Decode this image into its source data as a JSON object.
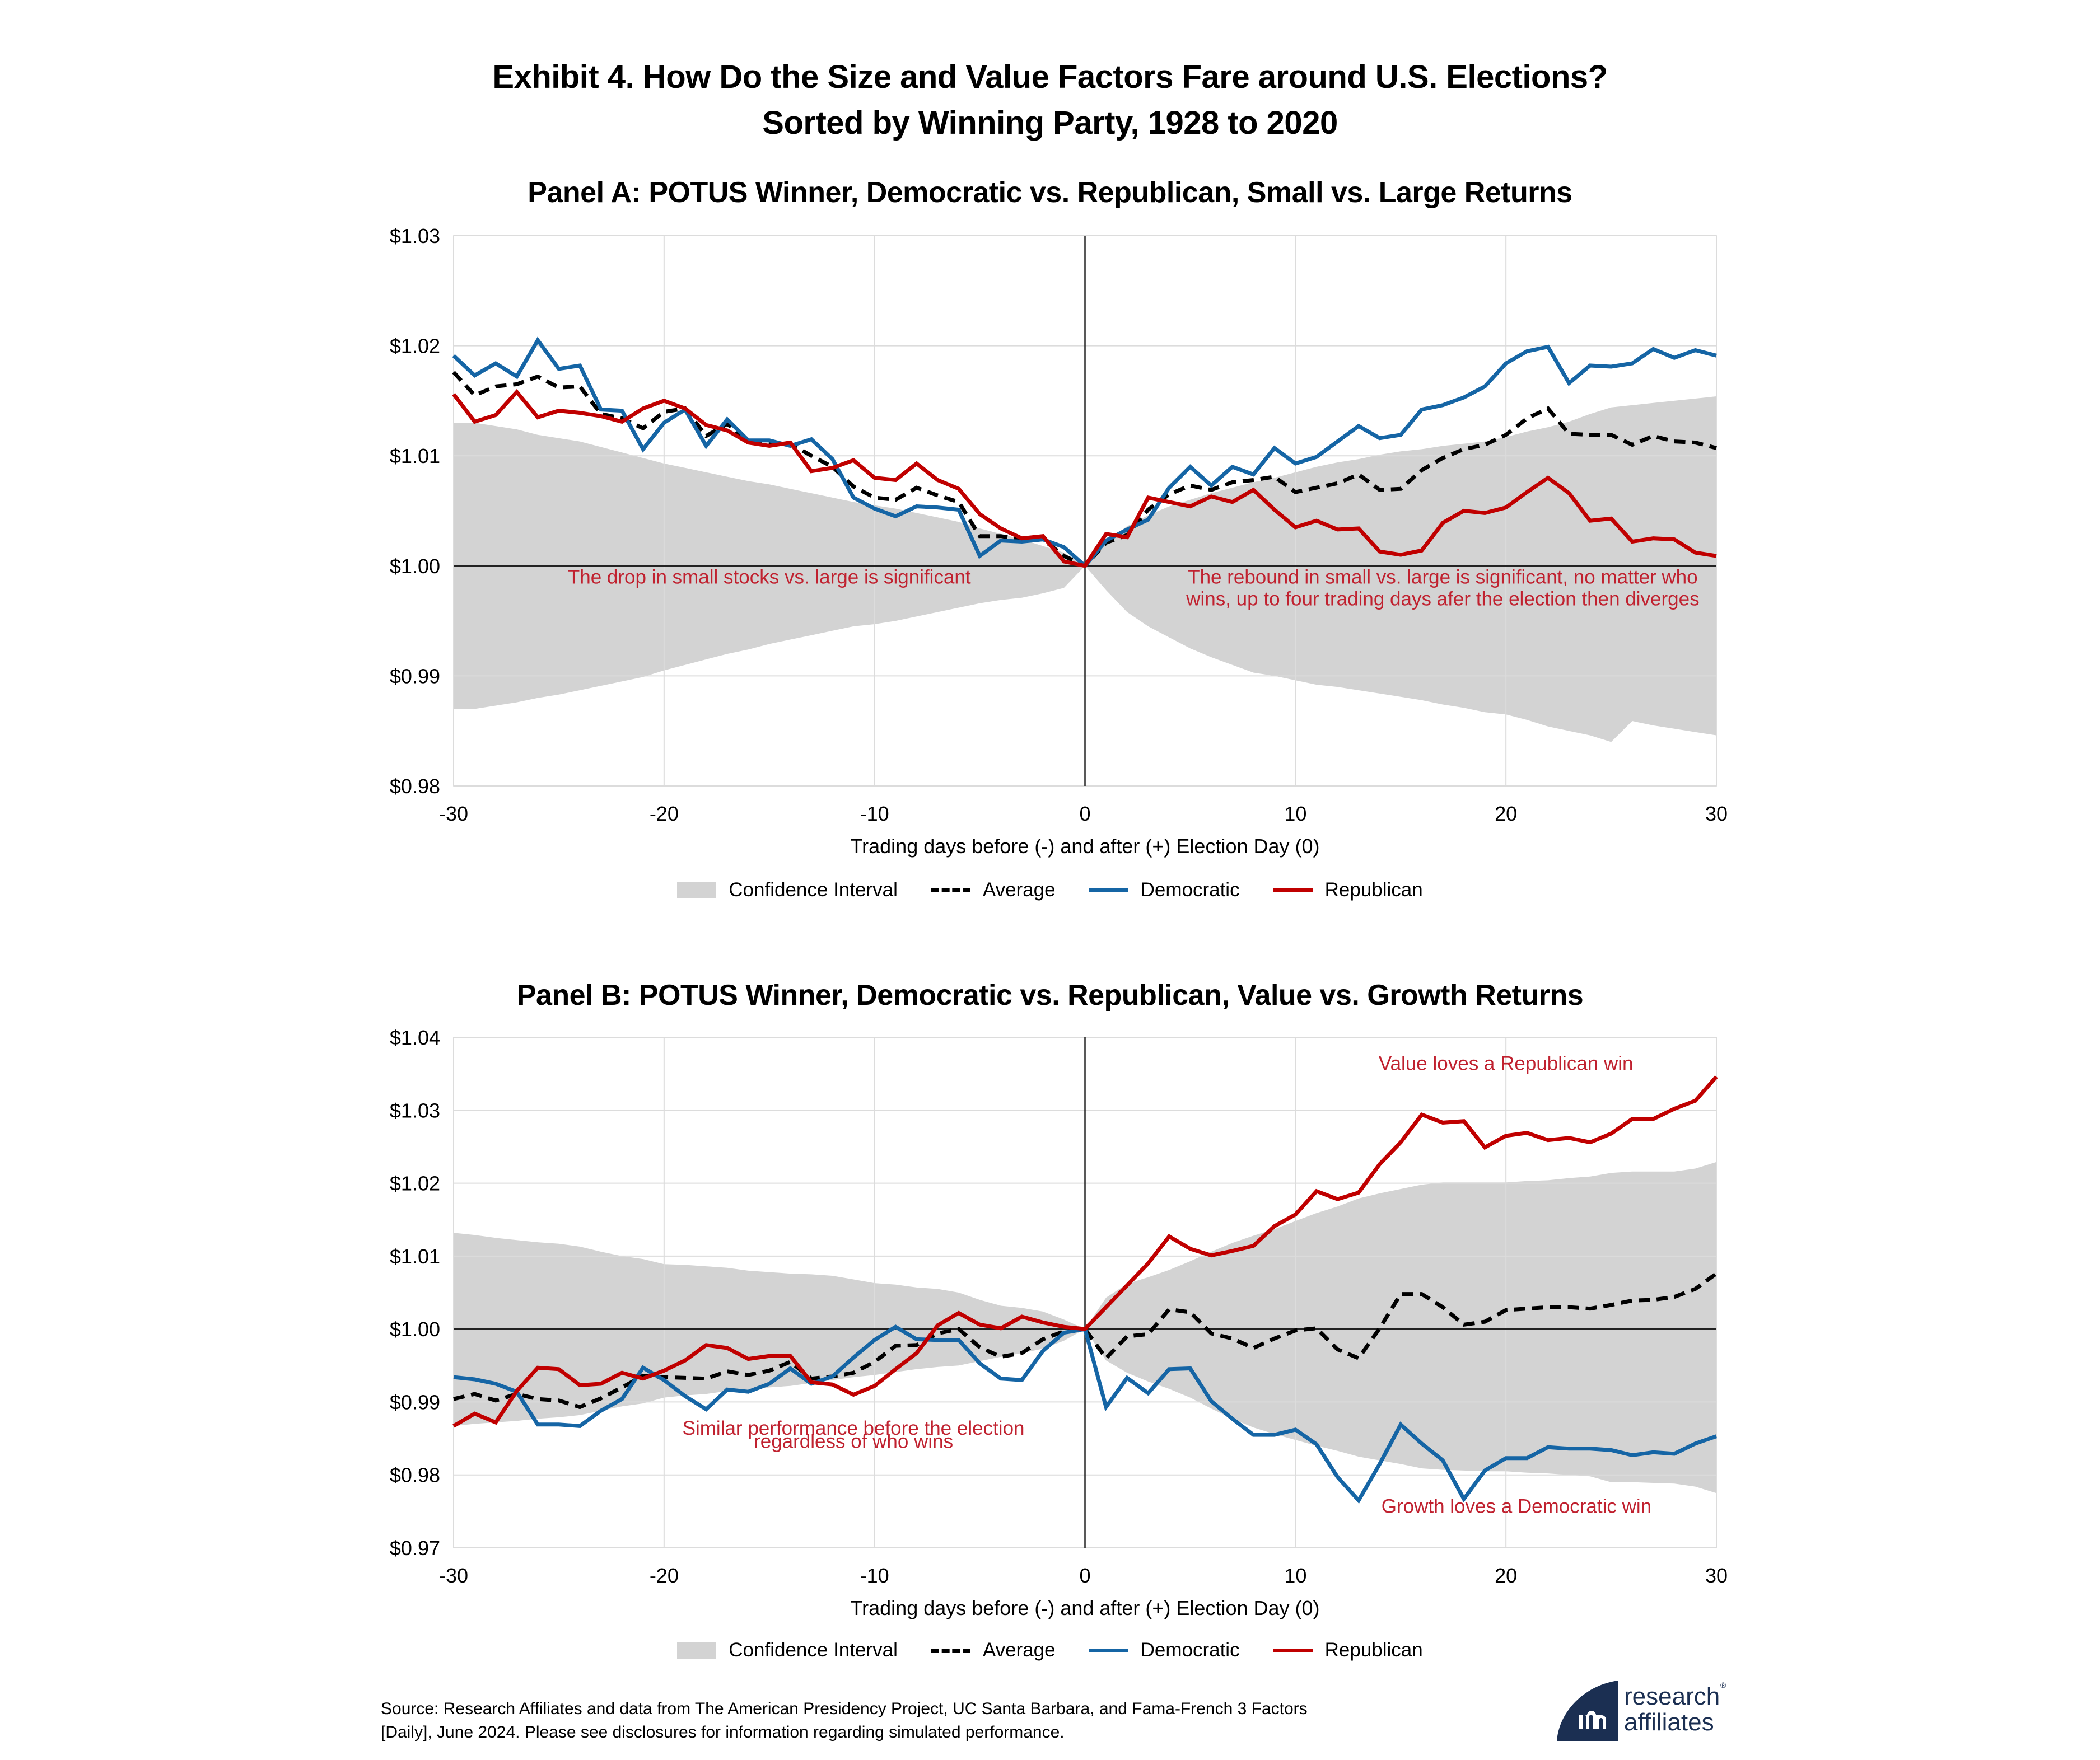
{
  "header": {
    "title_line1": "Exhibit 4. How Do the Size and Value Factors Fare around U.S. Elections?",
    "title_line2": "Sorted by Winning Party, 1928 to 2020"
  },
  "legend": {
    "ci": "Confidence Interval",
    "avg": "Average",
    "dem": "Democratic",
    "rep": "Republican"
  },
  "colors": {
    "democratic": "#1565a5",
    "republican": "#c00000",
    "average": "#000000",
    "confidence_interval": "#d3d3d3",
    "annotation": "#c0212f",
    "logo": "#1b2f52"
  },
  "footer": {
    "source_line1": "Source: Research Affiliates and data from The American Presidency Project, UC Santa Barbara, and Fama-French 3 Factors",
    "source_line2": "[Daily], June 2024. Please see disclosures for information regarding simulated performance.",
    "logo_line1": "research",
    "logo_line2": "affiliates",
    "logo_reg": "®"
  },
  "chart_data": [
    {
      "type": "line",
      "title": "Panel A: POTUS Winner, Democratic vs. Republican, Small vs. Large Returns",
      "xlabel": "Trading days before (-) and after (+) Election Day (0)",
      "ylabel": "",
      "xlim": [
        -30,
        30
      ],
      "ylim": [
        0.98,
        1.03
      ],
      "xticks": [
        -30,
        -20,
        -10,
        0,
        10,
        20,
        30
      ],
      "xtick_labels": [
        "-30",
        "-20",
        "-10",
        "0",
        "10",
        "20",
        "30"
      ],
      "yticks": [
        0.98,
        0.99,
        1.0,
        1.01,
        1.02,
        1.03
      ],
      "ytick_labels": [
        "$0.98",
        "$0.99",
        "$1.00",
        "$1.01",
        "$1.02",
        "$1.03"
      ],
      "grid": true,
      "legend_position": "bottom",
      "x": [
        -30,
        -29,
        -28,
        -27,
        -26,
        -25,
        -24,
        -23,
        -22,
        -21,
        -20,
        -19,
        -18,
        -17,
        -16,
        -15,
        -14,
        -13,
        -12,
        -11,
        -10,
        -9,
        -8,
        -7,
        -6,
        -5,
        -4,
        -3,
        -2,
        -1,
        0,
        1,
        2,
        3,
        4,
        5,
        6,
        7,
        8,
        9,
        10,
        11,
        12,
        13,
        14,
        15,
        16,
        17,
        18,
        19,
        20,
        21,
        22,
        23,
        24,
        25,
        26,
        27,
        28,
        29,
        30
      ],
      "ci_upper": [
        1.013,
        1.013,
        1.0127,
        1.0124,
        1.0119,
        1.0116,
        1.0113,
        1.0108,
        1.0103,
        1.0098,
        1.0093,
        1.0089,
        1.0085,
        1.0081,
        1.0077,
        1.0074,
        1.007,
        1.0066,
        1.0062,
        1.0058,
        1.0055,
        1.0052,
        1.0048,
        1.0044,
        1.004,
        1.0034,
        1.0029,
        1.0024,
        1.0018,
        1.0012,
        1.0,
        1.0022,
        1.0036,
        1.0046,
        1.0054,
        1.006,
        1.0066,
        1.0071,
        1.0076,
        1.008,
        1.0085,
        1.009,
        1.0094,
        1.0097,
        1.0101,
        1.0104,
        1.0106,
        1.0109,
        1.0111,
        1.0113,
        1.0117,
        1.0122,
        1.0126,
        1.0131,
        1.0138,
        1.0144,
        1.0146,
        1.0148,
        1.015,
        1.0152,
        1.0154
      ],
      "ci_lower": [
        0.987,
        0.987,
        0.9873,
        0.9876,
        0.988,
        0.9883,
        0.9887,
        0.9891,
        0.9895,
        0.9899,
        0.9905,
        0.991,
        0.9915,
        0.992,
        0.9924,
        0.9929,
        0.9933,
        0.9937,
        0.9941,
        0.9945,
        0.9947,
        0.995,
        0.9954,
        0.9958,
        0.9962,
        0.9966,
        0.9969,
        0.9971,
        0.9975,
        0.998,
        1.0,
        0.9978,
        0.9958,
        0.9945,
        0.9935,
        0.9925,
        0.9917,
        0.991,
        0.9903,
        0.99,
        0.9896,
        0.9892,
        0.989,
        0.9887,
        0.9884,
        0.9881,
        0.9878,
        0.9874,
        0.9871,
        0.9867,
        0.9865,
        0.986,
        0.9854,
        0.985,
        0.9846,
        0.984,
        0.9859,
        0.9855,
        0.9852,
        0.9849,
        0.9846
      ],
      "series": [
        {
          "name": "Average",
          "style": "dashed",
          "values": [
            1.0176,
            1.0155,
            1.0163,
            1.0165,
            1.0172,
            1.0162,
            1.0163,
            1.0138,
            1.0134,
            1.0125,
            1.014,
            1.0143,
            1.0118,
            1.0129,
            1.0114,
            1.0112,
            1.0111,
            1.01,
            1.009,
            1.0072,
            1.0062,
            1.006,
            1.0071,
            1.0064,
            1.0058,
            1.0027,
            1.0027,
            1.0024,
            1.0024,
            1.0009,
            1.0,
            1.0021,
            1.0028,
            1.0051,
            1.0065,
            1.0073,
            1.0069,
            1.0076,
            1.0078,
            1.0081,
            1.0067,
            1.0071,
            1.0075,
            1.0083,
            1.0069,
            1.007,
            1.0087,
            1.0098,
            1.0106,
            1.011,
            1.0119,
            1.0134,
            1.0143,
            1.012,
            1.0119,
            1.0119,
            1.011,
            1.0118,
            1.0113,
            1.0112,
            1.0107
          ]
        },
        {
          "name": "Democratic",
          "style": "solid",
          "values": [
            1.0191,
            1.0173,
            1.0184,
            1.0172,
            1.0205,
            1.0179,
            1.0182,
            1.0142,
            1.0141,
            1.0106,
            1.013,
            1.0142,
            1.0109,
            1.0133,
            1.0114,
            1.0114,
            1.0109,
            1.0115,
            1.0097,
            1.0062,
            1.0052,
            1.0045,
            1.0054,
            1.0053,
            1.0051,
            1.0009,
            1.0023,
            1.0022,
            1.0024,
            1.0017,
            1.0,
            1.0023,
            1.0033,
            1.0042,
            1.0071,
            1.009,
            1.0073,
            1.009,
            1.0083,
            1.0107,
            1.0093,
            1.0099,
            1.0113,
            1.0127,
            1.0116,
            1.0119,
            1.0142,
            1.0146,
            1.0153,
            1.0163,
            1.0184,
            1.0195,
            1.0199,
            1.0166,
            1.0182,
            1.0181,
            1.0184,
            1.0197,
            1.0189,
            1.0196,
            1.0191
          ]
        },
        {
          "name": "Republican",
          "style": "solid",
          "values": [
            1.0156,
            1.0131,
            1.0137,
            1.0158,
            1.0135,
            1.0141,
            1.0139,
            1.0136,
            1.0131,
            1.0143,
            1.015,
            1.0143,
            1.0128,
            1.0123,
            1.0112,
            1.0109,
            1.0112,
            1.0086,
            1.0089,
            1.0096,
            1.008,
            1.0078,
            1.0093,
            1.0078,
            1.007,
            1.0047,
            1.0034,
            1.0025,
            1.0027,
            1.0004,
            1.0,
            1.0029,
            1.0026,
            1.0062,
            1.0058,
            1.0054,
            1.0063,
            1.0058,
            1.0069,
            1.0051,
            1.0035,
            1.0041,
            1.0033,
            1.0034,
            1.0013,
            1.001,
            1.0014,
            1.0039,
            1.005,
            1.0048,
            1.0053,
            1.0067,
            1.008,
            1.0066,
            1.0041,
            1.0043,
            1.0022,
            1.0025,
            1.0024,
            1.0012,
            1.0009
          ]
        }
      ],
      "annotations": [
        {
          "text": "The drop in small stocks vs. large is significant",
          "x": -15,
          "y": 0.9984
        },
        {
          "text": "The rebound in small vs. large is significant, no matter who",
          "x": 17,
          "y": 0.9984
        },
        {
          "text": "wins, up to four trading days afer the election then diverges",
          "x": 17,
          "y": 0.9964
        }
      ]
    },
    {
      "type": "line",
      "title": "Panel B: POTUS Winner, Democratic vs. Republican, Value vs. Growth Returns",
      "xlabel": "Trading days before (-) and after (+) Election Day (0)",
      "ylabel": "",
      "xlim": [
        -30,
        30
      ],
      "ylim": [
        0.97,
        1.04
      ],
      "xticks": [
        -30,
        -20,
        -10,
        0,
        10,
        20,
        30
      ],
      "xtick_labels": [
        "-30",
        "-20",
        "-10",
        "0",
        "10",
        "20",
        "30"
      ],
      "yticks": [
        0.97,
        0.98,
        0.99,
        1.0,
        1.01,
        1.02,
        1.03,
        1.04
      ],
      "ytick_labels": [
        "$0.97",
        "$0.98",
        "$0.99",
        "$1.00",
        "$1.01",
        "$1.02",
        "$1.03",
        "$1.04"
      ],
      "grid": true,
      "legend_position": "bottom",
      "x": [
        -30,
        -29,
        -28,
        -27,
        -26,
        -25,
        -24,
        -23,
        -22,
        -21,
        -20,
        -19,
        -18,
        -17,
        -16,
        -15,
        -14,
        -13,
        -12,
        -11,
        -10,
        -9,
        -8,
        -7,
        -6,
        -5,
        -4,
        -3,
        -2,
        -1,
        0,
        1,
        2,
        3,
        4,
        5,
        6,
        7,
        8,
        9,
        10,
        11,
        12,
        13,
        14,
        15,
        16,
        17,
        18,
        19,
        20,
        21,
        22,
        23,
        24,
        25,
        26,
        27,
        28,
        29,
        30
      ],
      "ci_upper": [
        1.0132,
        1.0129,
        1.0125,
        1.0122,
        1.0119,
        1.0117,
        1.0113,
        1.0106,
        1.01,
        1.0096,
        1.0089,
        1.0088,
        1.0086,
        1.0084,
        1.008,
        1.0078,
        1.0076,
        1.0075,
        1.0073,
        1.0068,
        1.0063,
        1.0061,
        1.0057,
        1.0055,
        1.005,
        1.004,
        1.0032,
        1.0029,
        1.0024,
        1.0013,
        1.0,
        1.0043,
        1.0062,
        1.0071,
        1.0081,
        1.0093,
        1.0106,
        1.0118,
        1.0128,
        1.0137,
        1.0148,
        1.0159,
        1.0168,
        1.0179,
        1.0186,
        1.0192,
        1.0198,
        1.0201,
        1.0201,
        1.0201,
        1.0201,
        1.0203,
        1.0204,
        1.0207,
        1.0209,
        1.0214,
        1.0216,
        1.0216,
        1.0216,
        1.022,
        1.0229
      ],
      "ci_lower": [
        0.9867,
        0.987,
        0.9872,
        0.9874,
        0.9877,
        0.9879,
        0.9882,
        0.9888,
        0.9894,
        0.9898,
        0.9906,
        0.9909,
        0.9911,
        0.9915,
        0.9917,
        0.992,
        0.9922,
        0.9926,
        0.993,
        0.9934,
        0.9937,
        0.9941,
        0.9945,
        0.9948,
        0.995,
        0.9956,
        0.9962,
        0.9967,
        0.9973,
        0.9984,
        1.0,
        0.9957,
        0.994,
        0.9928,
        0.9918,
        0.9906,
        0.9891,
        0.9877,
        0.9865,
        0.9856,
        0.9848,
        0.984,
        0.9833,
        0.9825,
        0.982,
        0.9815,
        0.9809,
        0.9807,
        0.9806,
        0.9805,
        0.9805,
        0.9803,
        0.9802,
        0.98,
        0.9798,
        0.979,
        0.979,
        0.9789,
        0.9788,
        0.9784,
        0.9775
      ],
      "series": [
        {
          "name": "Average",
          "style": "dashed",
          "values": [
            0.9904,
            0.9911,
            0.9902,
            0.9911,
            0.9904,
            0.9902,
            0.9893,
            0.9905,
            0.992,
            0.9936,
            0.9934,
            0.9933,
            0.9932,
            0.9942,
            0.9937,
            0.9943,
            0.9955,
            0.9932,
            0.9935,
            0.994,
            0.9955,
            0.9977,
            0.9978,
            0.9994,
            1.0,
            0.9975,
            0.9962,
            0.9967,
            0.9986,
            0.9997,
            1.0,
            0.996,
            0.999,
            0.9993,
            1.0027,
            1.0023,
            0.9994,
            0.9987,
            0.9974,
            0.9987,
            0.9998,
            1.0001,
            0.9972,
            0.996,
            1.0001,
            1.0048,
            1.0048,
            1.003,
            1.0006,
            1.001,
            1.0026,
            1.0028,
            1.003,
            1.003,
            1.0028,
            1.0033,
            1.0039,
            1.004,
            1.0044,
            1.0055,
            1.0076
          ]
        },
        {
          "name": "Democratic",
          "style": "solid",
          "values": [
            0.9934,
            0.9931,
            0.9925,
            0.9914,
            0.9869,
            0.9869,
            0.9867,
            0.9888,
            0.9904,
            0.9947,
            0.993,
            0.9908,
            0.989,
            0.9917,
            0.9914,
            0.9925,
            0.9946,
            0.9925,
            0.9935,
            0.9961,
            0.9985,
            1.0003,
            0.9986,
            0.9985,
            0.9985,
            0.9953,
            0.9932,
            0.993,
            0.997,
            0.9995,
            1.0,
            0.9893,
            0.9933,
            0.9912,
            0.9945,
            0.9946,
            0.9901,
            0.9877,
            0.9855,
            0.9855,
            0.9862,
            0.9842,
            0.9797,
            0.9765,
            0.9815,
            0.9869,
            0.9843,
            0.982,
            0.9767,
            0.9806,
            0.9823,
            0.9823,
            0.9838,
            0.9836,
            0.9836,
            0.9834,
            0.9827,
            0.9831,
            0.9829,
            0.9843,
            0.9853
          ]
        },
        {
          "name": "Republican",
          "style": "solid",
          "values": [
            0.9867,
            0.9884,
            0.9872,
            0.9915,
            0.9947,
            0.9945,
            0.9923,
            0.9925,
            0.994,
            0.9932,
            0.9943,
            0.9957,
            0.9978,
            0.9974,
            0.9959,
            0.9963,
            0.9963,
            0.9927,
            0.9924,
            0.991,
            0.9922,
            0.9945,
            0.9967,
            1.0005,
            1.0022,
            1.0006,
            1.0001,
            1.0017,
            1.0009,
            1.0003,
            1.0,
            1.003,
            1.006,
            1.009,
            1.0127,
            1.011,
            1.0101,
            1.0107,
            1.0114,
            1.0141,
            1.0157,
            1.0189,
            1.0178,
            1.0187,
            1.0226,
            1.0256,
            1.0294,
            1.0283,
            1.0285,
            1.0249,
            1.0265,
            1.0269,
            1.0259,
            1.0262,
            1.0256,
            1.0268,
            1.0288,
            1.0288,
            1.0302,
            1.0313,
            1.0346
          ]
        }
      ],
      "annotations": [
        {
          "text": "Value loves a Republican win",
          "x": 20,
          "y": 1.0355
        },
        {
          "text": "Similar performance before the election",
          "x": -11,
          "y": 0.9855
        },
        {
          "text": "regardless of who wins",
          "x": -11,
          "y": 0.9837
        },
        {
          "text": "Growth loves a Democratic win",
          "x": 20.5,
          "y": 0.9748
        }
      ]
    }
  ]
}
